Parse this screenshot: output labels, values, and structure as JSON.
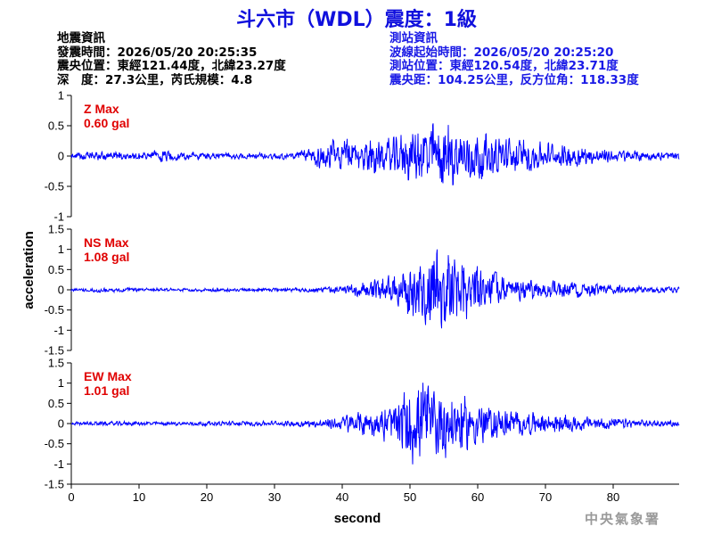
{
  "title": "斗六市（WDL）震度：1級",
  "quake_info": {
    "heading": "地震資訊",
    "time": "發震時間：2026/05/20 20:25:35",
    "epicenter": "震央位置：東經121.44度，北緯23.27度",
    "depth_magnitude": "深　度：27.3公里，芮氏規模：4.8"
  },
  "station_info": {
    "heading": "測站資訊",
    "wave_start": "波線起始時間：2026/05/20 20:25:20",
    "location": "測站位置：東經120.54度，北緯23.71度",
    "distance": "震央距：104.25公里，反方位角：118.33度"
  },
  "agency": "中央氣象署",
  "colors": {
    "trace": "#0000ff",
    "max_label": "#e00000",
    "title": "#1010dd",
    "station_text": "#1a1ae6"
  },
  "chart_data": [
    {
      "type": "line",
      "component": "Z",
      "max_label": "Z Max",
      "max_value": "0.60 gal",
      "x_range": [
        0,
        90
      ],
      "ylim": [
        -1,
        1
      ],
      "yticks": [
        "1",
        "0.5",
        "0",
        "-0.5",
        "-1"
      ],
      "grid": false,
      "envelope": {
        "time": [
          0,
          5,
          10,
          13,
          15,
          20,
          25,
          30,
          33,
          35,
          38,
          42,
          45,
          48,
          50,
          52,
          53.5,
          55,
          57,
          60,
          63,
          65,
          70,
          75,
          80,
          85,
          90
        ],
        "amplitude": [
          0.05,
          0.07,
          0.06,
          0.1,
          0.07,
          0.06,
          0.05,
          0.05,
          0.06,
          0.12,
          0.25,
          0.28,
          0.26,
          0.3,
          0.4,
          0.5,
          0.6,
          0.55,
          0.45,
          0.38,
          0.3,
          0.28,
          0.22,
          0.15,
          0.1,
          0.08,
          0.06
        ]
      }
    },
    {
      "type": "line",
      "component": "NS",
      "max_label": "NS Max",
      "max_value": "1.08 gal",
      "x_range": [
        0,
        90
      ],
      "ylim": [
        -1.5,
        1.5
      ],
      "yticks": [
        "1.5",
        "1",
        "0.5",
        "0",
        "-0.5",
        "-1",
        "-1.5"
      ],
      "grid": false,
      "envelope": {
        "time": [
          0,
          5,
          10,
          20,
          30,
          35,
          38,
          40,
          45,
          48,
          50,
          52,
          54,
          55,
          57,
          60,
          63,
          65,
          70,
          75,
          80,
          85,
          90
        ],
        "amplitude": [
          0.04,
          0.06,
          0.04,
          0.04,
          0.04,
          0.05,
          0.07,
          0.08,
          0.25,
          0.4,
          0.6,
          0.8,
          1.0,
          1.08,
          0.85,
          0.55,
          0.4,
          0.3,
          0.22,
          0.18,
          0.12,
          0.08,
          0.06
        ]
      }
    },
    {
      "type": "line",
      "component": "EW",
      "max_label": "EW Max",
      "max_value": "1.01 gal",
      "x_range": [
        0,
        90
      ],
      "ylim": [
        -1.5,
        1.5
      ],
      "yticks": [
        "1.5",
        "1",
        "0.5",
        "0",
        "-0.5",
        "-1",
        "-1.5"
      ],
      "xticks": [
        "0",
        "10",
        "20",
        "30",
        "40",
        "50",
        "60",
        "70",
        "80"
      ],
      "grid": false,
      "envelope": {
        "time": [
          0,
          5,
          10,
          20,
          30,
          35,
          38,
          40,
          45,
          48,
          50,
          52,
          54,
          55,
          57,
          60,
          63,
          65,
          70,
          75,
          80,
          85,
          90
        ],
        "amplitude": [
          0.04,
          0.05,
          0.05,
          0.05,
          0.06,
          0.08,
          0.12,
          0.2,
          0.35,
          0.55,
          0.95,
          1.01,
          0.9,
          0.85,
          0.75,
          0.5,
          0.35,
          0.3,
          0.25,
          0.18,
          0.12,
          0.08,
          0.06
        ]
      }
    }
  ],
  "axis": {
    "xlabel": "second",
    "ylabel": "acceleration"
  }
}
